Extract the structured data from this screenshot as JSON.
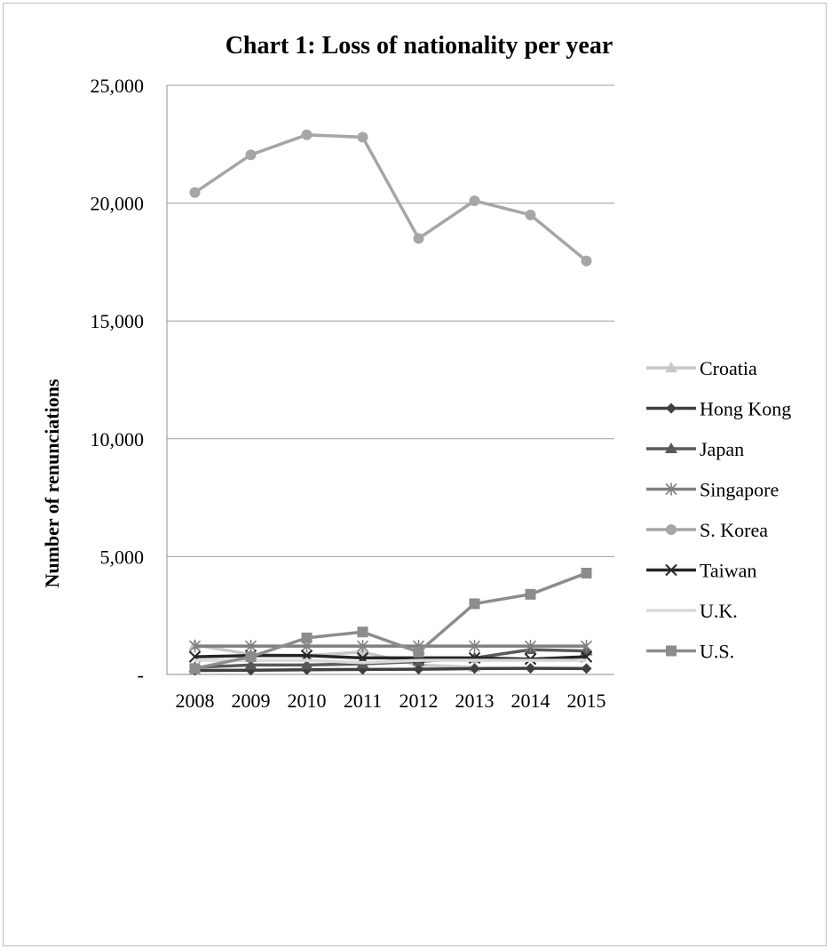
{
  "chart_data": {
    "type": "line",
    "title": "Chart 1: Loss of nationality per year",
    "xlabel": "",
    "ylabel": "Number of renunciations",
    "ylim": [
      0,
      25000
    ],
    "y_ticks": [
      0,
      5000,
      10000,
      15000,
      20000,
      25000
    ],
    "y_tick_labels": [
      "-",
      "5,000",
      "10,000",
      "15,000",
      "20,000",
      "25,000"
    ],
    "categories": [
      "2008",
      "2009",
      "2010",
      "2011",
      "2012",
      "2013",
      "2014",
      "2015"
    ],
    "grid": true,
    "legend_position": "right",
    "series": [
      {
        "name": "Croatia",
        "marker": "triangle",
        "color": "#c8c8c8",
        "values": [
          1250,
          850,
          800,
          950,
          400,
          300,
          null,
          null
        ]
      },
      {
        "name": "Hong Kong",
        "marker": "diamond",
        "color": "#404040",
        "values": [
          170,
          180,
          200,
          210,
          220,
          250,
          260,
          250
        ]
      },
      {
        "name": "Japan",
        "marker": "triangle",
        "color": "#595959",
        "values": [
          300,
          400,
          400,
          450,
          550,
          700,
          1050,
          1000
        ]
      },
      {
        "name": "Singapore",
        "marker": "star",
        "color": "#7f7f7f",
        "values": [
          1200,
          1200,
          1200,
          1200,
          1200,
          1200,
          1200,
          1200
        ]
      },
      {
        "name": "S. Korea",
        "marker": "circle",
        "color": "#a6a6a6",
        "values": [
          20450,
          22050,
          22900,
          22800,
          18500,
          20100,
          19500,
          17550
        ]
      },
      {
        "name": "Taiwan",
        "marker": "x",
        "color": "#262626",
        "values": [
          750,
          800,
          800,
          700,
          700,
          700,
          650,
          750
        ]
      },
      {
        "name": "U.K.",
        "marker": "none",
        "color": "#d9d9d9",
        "values": [
          600,
          600,
          600,
          500,
          600,
          600,
          600,
          600
        ]
      },
      {
        "name": "U.S.",
        "marker": "square",
        "color": "#8c8c8c",
        "values": [
          250,
          750,
          1550,
          1800,
          950,
          3000,
          3400,
          4300
        ]
      }
    ]
  }
}
